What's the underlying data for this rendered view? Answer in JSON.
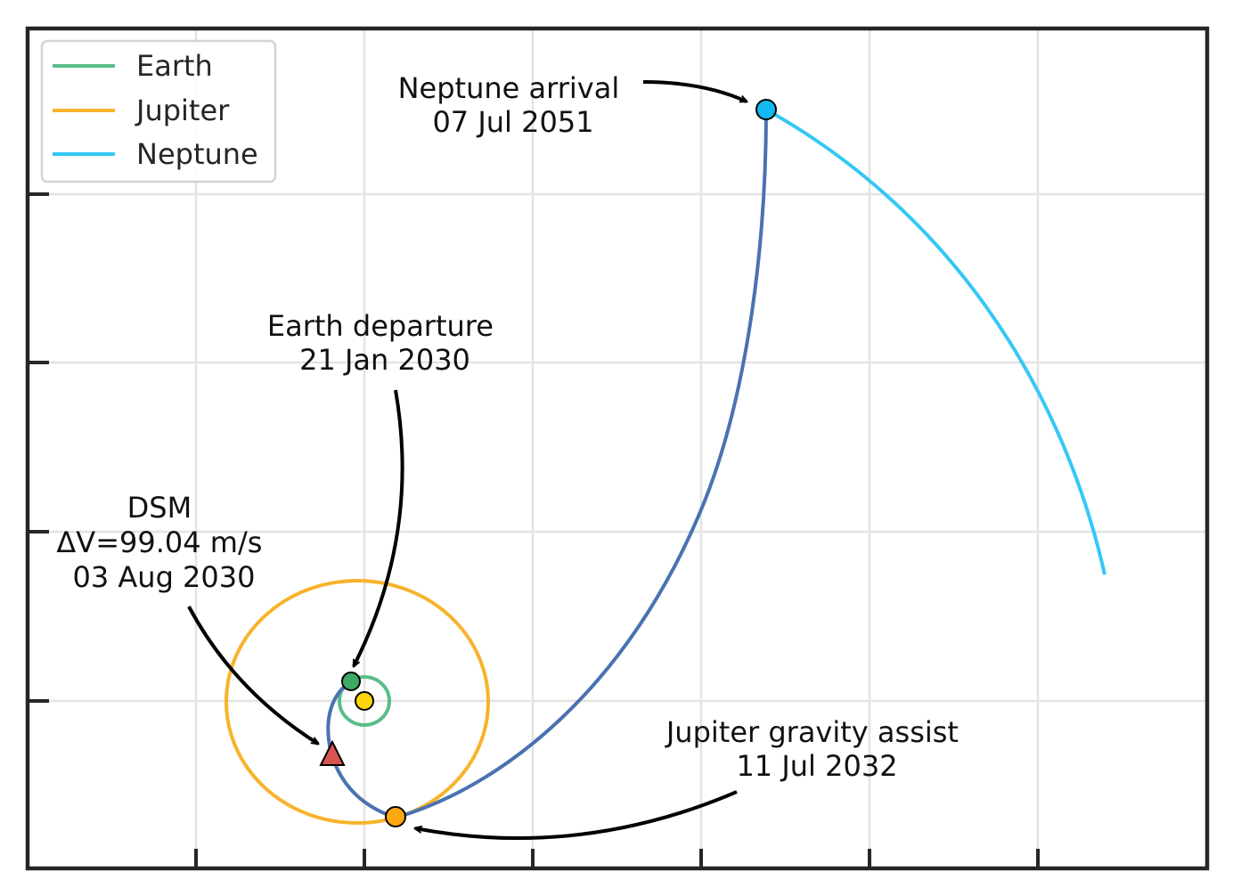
{
  "colors": {
    "earth": "#5bbd8a",
    "jupiter": "#f7b32b",
    "neptune": "#35c8f5",
    "transfer": "#4a72b0",
    "sun": "#fcd40a",
    "earth_marker": "#3eaa66",
    "jupiter_marker": "#fca80e",
    "neptune_marker": "#12b9f0",
    "dsm_marker": "#d9544f"
  },
  "legend": {
    "entries": [
      {
        "label": "Earth",
        "color_key": "earth"
      },
      {
        "label": "Jupiter",
        "color_key": "jupiter"
      },
      {
        "label": "Neptune",
        "color_key": "neptune"
      }
    ]
  },
  "annotations": {
    "neptune_arrival": {
      "line1": "Neptune arrival",
      "line2": "07 Jul 2051"
    },
    "earth_departure": {
      "line1": "Earth departure",
      "line2": "21 Jan 2030"
    },
    "dsm": {
      "line1": "DSM",
      "line2": "ΔV=99.04 m/s",
      "line3": "03 Aug 2030"
    },
    "jupiter_flyby": {
      "line1": "Jupiter gravity assist",
      "line2": "11 Jul 2032"
    }
  }
}
